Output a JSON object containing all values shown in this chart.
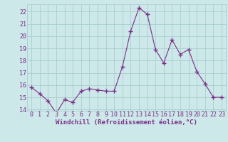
{
  "x": [
    0,
    1,
    2,
    3,
    4,
    5,
    6,
    7,
    8,
    9,
    10,
    11,
    12,
    13,
    14,
    15,
    16,
    17,
    18,
    19,
    20,
    21,
    22,
    23
  ],
  "y": [
    15.8,
    15.3,
    14.7,
    13.7,
    14.8,
    14.6,
    15.5,
    15.7,
    15.6,
    15.5,
    15.5,
    17.5,
    20.4,
    22.3,
    21.8,
    18.9,
    17.8,
    19.7,
    18.5,
    18.9,
    17.1,
    16.1,
    15.0,
    15.0
  ],
  "line_color": "#7b2d8b",
  "marker": "+",
  "marker_size": 4,
  "bg_color": "#cce8e8",
  "grid_color": "#aacece",
  "ylim": [
    13.9,
    22.6
  ],
  "yticks": [
    14,
    15,
    16,
    17,
    18,
    19,
    20,
    21,
    22
  ],
  "xticks": [
    0,
    1,
    2,
    3,
    4,
    5,
    6,
    7,
    8,
    9,
    10,
    11,
    12,
    13,
    14,
    15,
    16,
    17,
    18,
    19,
    20,
    21,
    22,
    23
  ],
  "xlabel": "Windchill (Refroidissement éolien,°C)",
  "xlabel_fontsize": 6.5,
  "tick_fontsize": 6.0,
  "tick_color": "#7b2d8b",
  "label_color": "#7b2d8b",
  "line_width": 0.8
}
